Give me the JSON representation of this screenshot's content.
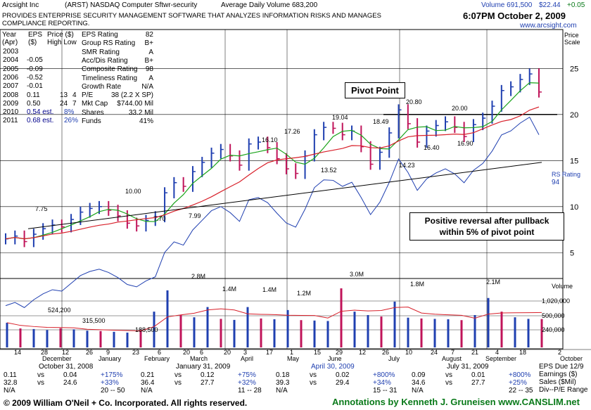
{
  "header": {
    "company": "Arcsight Inc",
    "ticker_line": "(ARST)  NASDAQ  Computer Sftwr-security",
    "avg_volume": "Average Daily Volume 683,200",
    "volume_today": "Volume 691,500",
    "price_now": "$22.44",
    "change": "+0.05",
    "description": "PROVIDES ENTERPRISE SECURITY MANAGEMENT SOFTWARE THAT ANALYZES INFORMATION RISKS AND MANAGES COMPLIANCE REPORTING.",
    "timestamp": "6:07PM October 2, 2009",
    "site": "www.arcsight.com",
    "price_scale": "Price Scale"
  },
  "eps_table": {
    "headers": [
      "Year (Apr)",
      "EPS ($)",
      "Price ($) High Low"
    ],
    "rows": [
      [
        "2003",
        "",
        "",
        ""
      ],
      [
        "2004",
        "-0.05",
        "",
        ""
      ],
      [
        "2005",
        "-0.09",
        "",
        ""
      ],
      [
        "2006",
        "-0.52",
        "",
        ""
      ],
      [
        "2007",
        "-0.01",
        "",
        ""
      ],
      [
        "2008",
        "0.11",
        "13",
        "4"
      ],
      [
        "2009",
        "0.50",
        "24",
        "7"
      ],
      [
        "2010",
        "0.54 est.",
        "8%",
        ""
      ],
      [
        "2011",
        "0.68 est.",
        "26%",
        ""
      ]
    ]
  },
  "ratings": [
    [
      "EPS Rating",
      "82"
    ],
    [
      "Group RS Rating",
      "B+"
    ],
    [
      "SMR Rating",
      "A"
    ],
    [
      "Acc/Dis Rating",
      "B+"
    ],
    [
      "Composite Rating",
      "98"
    ],
    [
      "Timeliness Rating",
      "A"
    ],
    [
      "Growth Rate",
      "N/A"
    ],
    [
      "P/E",
      "38 (2.2 X SP)"
    ],
    [
      "Mkt Cap",
      "$744.00 Mil"
    ],
    [
      "Shares",
      "33.2 Mil"
    ],
    [
      "Funds",
      "41%"
    ]
  ],
  "annotations": {
    "pivot": "Pivot Point",
    "reversal": "Positive reversal after pullback within 5% of pivot point",
    "rs_rating_label": "RS Rating",
    "rs_rating_value": "94",
    "volume_label": "Volume"
  },
  "chart_data": {
    "type": "bar",
    "price_axis": {
      "ticks": [
        5,
        10,
        15,
        20,
        25
      ],
      "ylim": [
        2.5,
        28
      ]
    },
    "volume_axis": {
      "ticks": [
        "1,020,000",
        "500,000",
        "240,000"
      ]
    },
    "price_labels": [
      "7.75",
      "10.00",
      "7.70",
      "7.99",
      "16.10",
      "17.26",
      "13.52",
      "19.04",
      "18.49",
      "14.23",
      "20.80",
      "20.00",
      "16.40",
      "16.90"
    ],
    "volume_labels": [
      "524,200",
      "315,500",
      "188,500",
      "2.8M",
      "1.4M",
      "1.4M",
      "1.2M",
      "3.0M",
      "1.8M",
      "2.1M"
    ],
    "x_ticks": [
      "14",
      "28",
      "12",
      "26",
      "9",
      "23",
      "6",
      "20",
      "6",
      "20",
      "3",
      "17",
      "1",
      "15",
      "29",
      "12",
      "26",
      "10",
      "24",
      "7",
      "21",
      "4",
      "18",
      "2"
    ],
    "months": [
      "December",
      "January",
      "February",
      "March",
      "April",
      "May",
      "June",
      "July",
      "August",
      "September",
      "October"
    ],
    "pivot_price": 20.0,
    "weeks_close": [
      6.5,
      6.8,
      6.2,
      7.0,
      7.6,
      8.0,
      7.8,
      8.6,
      9.4,
      9.8,
      10.0,
      9.6,
      9.0,
      8.2,
      7.9,
      8.5,
      8.9,
      11.5,
      12.6,
      12.2,
      13.8,
      14.8,
      15.8,
      16.2,
      15.5,
      14.5,
      16.8,
      17.0,
      16.4,
      15.2,
      14.1,
      13.6,
      15.5,
      17.8,
      18.6,
      18.5,
      17.8,
      18.2,
      16.5,
      14.6,
      15.9,
      18.0,
      20.5,
      19.0,
      17.0,
      18.2,
      18.8,
      19.2,
      18.6,
      17.6,
      18.9,
      19.6,
      20.9,
      22.6,
      23.0,
      23.8,
      24.4,
      22.44
    ],
    "volume": [
      524200,
      310000,
      290000,
      260000,
      315500,
      280000,
      240000,
      230000,
      210000,
      188500,
      260000,
      1100000,
      2800000,
      900000,
      780000,
      1400000,
      700000,
      650000,
      1400000,
      720000,
      680000,
      1200000,
      640000,
      620000,
      600000,
      3000000,
      1100000,
      900000,
      820000,
      1800000,
      760000,
      720000,
      700000,
      680000,
      640000,
      900000,
      2100000,
      1100000,
      780000,
      700000,
      691500
    ]
  },
  "footer": {
    "quarters": [
      {
        "period": "October 31, 2008",
        "rows": [
          [
            "0.11",
            "vs",
            "0.04",
            "+175%"
          ],
          [
            "32.8",
            "vs",
            "24.6",
            "+33%"
          ],
          [
            "N/A",
            "",
            "",
            "20 -- 50"
          ]
        ]
      },
      {
        "period": "January 31, 2009",
        "rows": [
          [
            "0.21",
            "vs",
            "0.12",
            "+75%"
          ],
          [
            "36.4",
            "vs",
            "27.7",
            "+32%"
          ],
          [
            "N/A",
            "",
            "",
            "11 -- 28"
          ]
        ]
      },
      {
        "period": "April 30, 2009",
        "rows": [
          [
            "0.18",
            "vs",
            "0.02",
            "+800%"
          ],
          [
            "39.3",
            "vs",
            "29.4",
            "+34%"
          ],
          [
            "N/A",
            "",
            "",
            "15 -- 31"
          ]
        ]
      },
      {
        "period": "July 31, 2009",
        "rows": [
          [
            "0.09",
            "vs",
            "0.01",
            "+800%"
          ],
          [
            "34.6",
            "vs",
            "27.7",
            "+25%"
          ],
          [
            "N/A",
            "",
            "",
            "22 -- 35"
          ]
        ]
      }
    ],
    "right_labels": [
      "EPS Due 12/9",
      "Earnings ($)",
      "Sales ($Mil)",
      "Div--P/E Range"
    ],
    "copyright": "© 2009 William O'Neil + Co. Incorporated. All rights reserved.",
    "credit": "Annotations by Kenneth J. Gruneisen  www.CANSLIM.net"
  }
}
